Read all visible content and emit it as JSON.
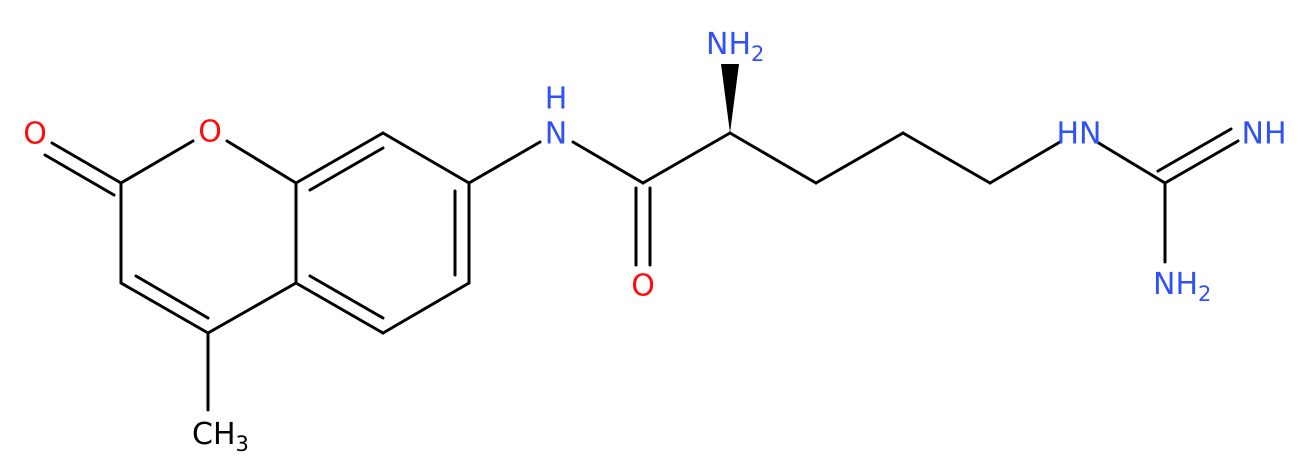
{
  "atoms": [
    {
      "text": "O"
    },
    {
      "text": "O"
    },
    {
      "text": "N"
    },
    {
      "text": "H"
    },
    {
      "text": "NH",
      "sub": "2"
    },
    {
      "text": "O"
    },
    {
      "text": "HN"
    },
    {
      "text": "NH"
    },
    {
      "text": "NH",
      "sub": "2"
    },
    {
      "text": "CH",
      "sub": "3"
    }
  ]
}
